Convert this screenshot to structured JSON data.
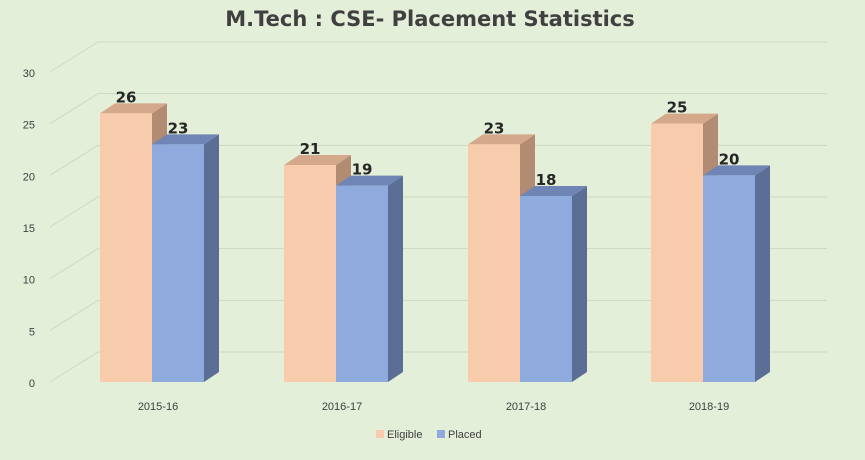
{
  "chart_data": {
    "type": "bar",
    "title": "M.Tech : CSE-  Placement Statistics",
    "categories": [
      "2015-16",
      "2016-17",
      "2017-18",
      "2018-19"
    ],
    "series": [
      {
        "name": "Eligible",
        "values": [
          26,
          21,
          23,
          25
        ],
        "color": "#f8cbad",
        "side_color": "#b28b73",
        "top_color": "#d4a88b"
      },
      {
        "name": "Placed",
        "values": [
          23,
          19,
          18,
          20
        ],
        "color": "#8faadc",
        "side_color": "#5b6e96",
        "top_color": "#6f85b5"
      }
    ],
    "ylim": [
      0,
      30
    ],
    "yticks": [
      0,
      5,
      10,
      15,
      20,
      25,
      30
    ],
    "grid": true,
    "legend_position": "bottom",
    "style": "3d-column"
  }
}
